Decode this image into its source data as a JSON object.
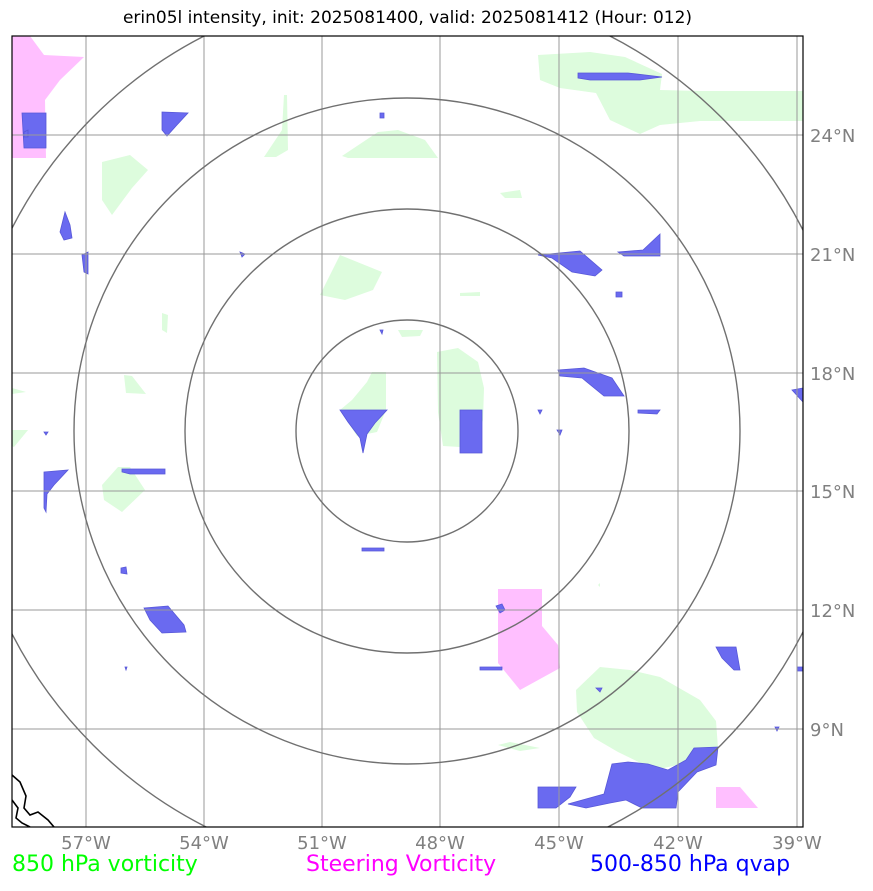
{
  "title": "erin05l intensity, init: 2025081400, valid: 2025081412 (Hour: 012)",
  "map": {
    "lon_ticks": [
      "57°W",
      "54°W",
      "51°W",
      "48°W",
      "45°W",
      "42°W",
      "39°W"
    ],
    "lat_ticks": [
      "24°N",
      "21°N",
      "18°N",
      "15°N",
      "12°N",
      "9°N"
    ],
    "rings": {
      "center_lon": -49.0,
      "center_lat": 16.6,
      "count": 4
    },
    "colors": {
      "vorticity_850": "#ddfcdd",
      "steering": "#ffbfff",
      "qvap": "#6a6af0",
      "grid": "#999999",
      "rings": "#707070"
    }
  },
  "legend": {
    "vorticity": "850 hPa vorticity",
    "steering": "Steering Vorticity",
    "qvap": "500-850 hPa qvap"
  }
}
